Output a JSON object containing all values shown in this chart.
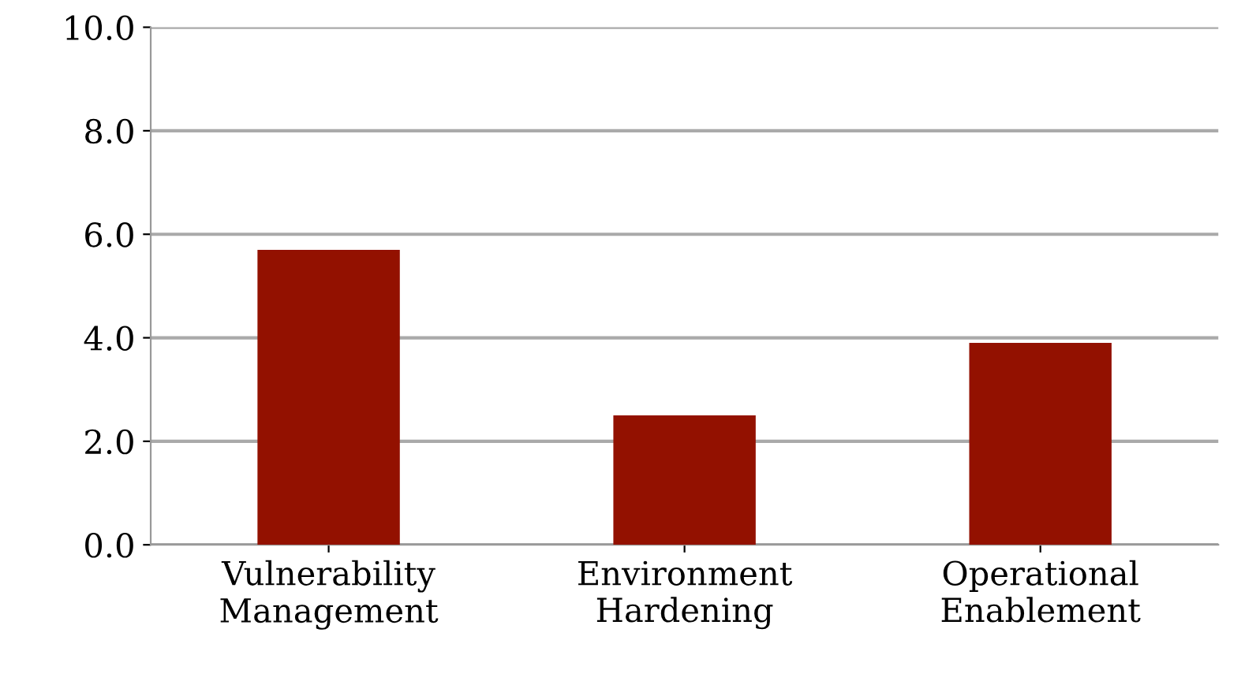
{
  "chart_data": {
    "type": "bar",
    "categories": [
      "Vulnerability\nManagement",
      "Environment\nHardening",
      "Operational\nEnablement"
    ],
    "values": [
      5.7,
      2.5,
      3.9
    ],
    "color": "#931100",
    "ylim": [
      0,
      10
    ],
    "yticks": [
      {
        "value": 0,
        "label": "0.0"
      },
      {
        "value": 2,
        "label": "2.0"
      },
      {
        "value": 4,
        "label": "4.0"
      },
      {
        "value": 6,
        "label": "6.0"
      },
      {
        "value": 8,
        "label": "8.0"
      },
      {
        "value": 10,
        "label": "10.0"
      }
    ],
    "grid": "y"
  }
}
